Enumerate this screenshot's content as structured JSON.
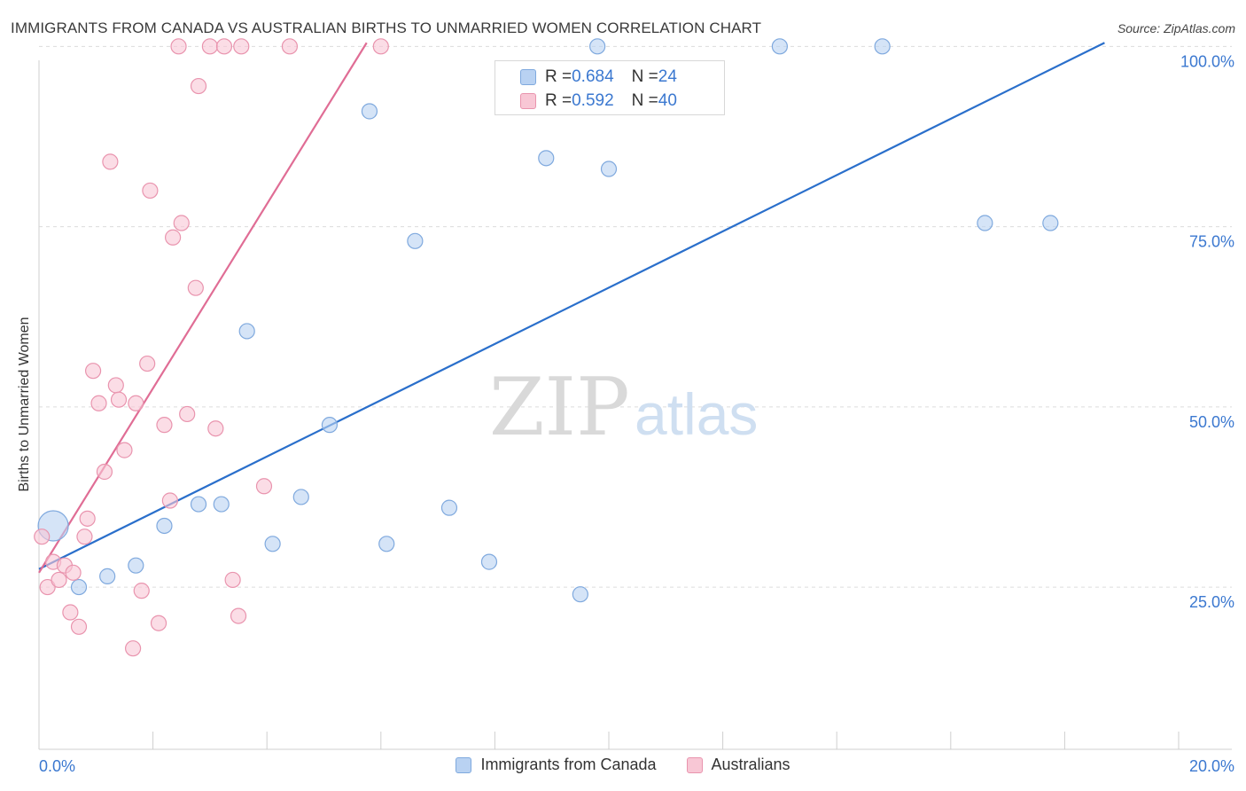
{
  "header": {
    "title": "IMMIGRANTS FROM CANADA VS AUSTRALIAN BIRTHS TO UNMARRIED WOMEN CORRELATION CHART",
    "source": "Source: ZipAtlas.com"
  },
  "watermark": {
    "zip": "ZIP",
    "atlas": "atlas"
  },
  "legend": {
    "rows": [
      {
        "r_label": "R = ",
        "r_value": "0.684",
        "n_label": "N = ",
        "n_value": "24"
      },
      {
        "r_label": "R = ",
        "r_value": "0.592",
        "n_label": "N = ",
        "n_value": "40"
      }
    ]
  },
  "colors": {
    "blue_fill": "#b9d2f2",
    "blue_stroke": "#7fa9de",
    "blue_line": "#2a6fcb",
    "pink_fill": "#f8c7d5",
    "pink_stroke": "#e994ae",
    "pink_line": "#e06d95",
    "grid": "#dcdcdc",
    "tick_text": "#3b78d0"
  },
  "chart_data": {
    "type": "scatter",
    "title": "IMMIGRANTS FROM CANADA VS AUSTRALIAN BIRTHS TO UNMARRIED WOMEN CORRELATION CHART",
    "xlabel": "",
    "ylabel": "Births to Unmarried Women",
    "xlim": [
      0,
      20
    ],
    "ylim": [
      2.5,
      102.5
    ],
    "x_tick_labels": [
      {
        "value": 0,
        "label": "0.0%"
      },
      {
        "value": 20,
        "label": "20.0%"
      }
    ],
    "y_tick_labels": [
      {
        "value": 25,
        "label": "25.0%"
      },
      {
        "value": 50,
        "label": "50.0%"
      },
      {
        "value": 75,
        "label": "75.0%"
      },
      {
        "value": 100,
        "label": "100.0%"
      }
    ],
    "x_minor_ticks": [
      0,
      2,
      4,
      6,
      8,
      10,
      12,
      14,
      16,
      18,
      20
    ],
    "grid": true,
    "legend_position": "top-center",
    "series": [
      {
        "name": "Immigrants from Canada",
        "color": "#b9d2f2",
        "points": [
          {
            "x": 0.25,
            "y": 33.5,
            "size": "large"
          },
          {
            "x": 0.7,
            "y": 25.0
          },
          {
            "x": 1.2,
            "y": 26.5
          },
          {
            "x": 1.7,
            "y": 28.0
          },
          {
            "x": 2.2,
            "y": 33.5
          },
          {
            "x": 2.8,
            "y": 36.5
          },
          {
            "x": 3.2,
            "y": 36.5
          },
          {
            "x": 3.65,
            "y": 60.5
          },
          {
            "x": 4.1,
            "y": 31.0
          },
          {
            "x": 4.6,
            "y": 37.5
          },
          {
            "x": 5.1,
            "y": 47.5
          },
          {
            "x": 5.8,
            "y": 91.0
          },
          {
            "x": 6.1,
            "y": 31.0
          },
          {
            "x": 6.6,
            "y": 73.0
          },
          {
            "x": 7.2,
            "y": 36.0
          },
          {
            "x": 7.9,
            "y": 28.5
          },
          {
            "x": 8.9,
            "y": 84.5
          },
          {
            "x": 9.5,
            "y": 24.0
          },
          {
            "x": 9.8,
            "y": 100.0
          },
          {
            "x": 10.0,
            "y": 83.0
          },
          {
            "x": 13.0,
            "y": 100.0
          },
          {
            "x": 14.8,
            "y": 100.0
          },
          {
            "x": 16.6,
            "y": 75.5
          },
          {
            "x": 17.75,
            "y": 75.5
          }
        ],
        "trend": {
          "x1": 0,
          "y1": 27.5,
          "x2": 18.7,
          "y2": 100.5
        }
      },
      {
        "name": "Australians",
        "color": "#f8c7d5",
        "points": [
          {
            "x": 0.05,
            "y": 32.0
          },
          {
            "x": 0.15,
            "y": 25.0
          },
          {
            "x": 0.25,
            "y": 28.5
          },
          {
            "x": 0.35,
            "y": 26.0
          },
          {
            "x": 0.45,
            "y": 28.0
          },
          {
            "x": 0.55,
            "y": 21.5
          },
          {
            "x": 0.6,
            "y": 27.0
          },
          {
            "x": 0.7,
            "y": 19.5
          },
          {
            "x": 0.8,
            "y": 32.0
          },
          {
            "x": 0.85,
            "y": 34.5
          },
          {
            "x": 0.95,
            "y": 55.0
          },
          {
            "x": 1.05,
            "y": 50.5
          },
          {
            "x": 1.15,
            "y": 41.0
          },
          {
            "x": 1.25,
            "y": 84.0
          },
          {
            "x": 1.35,
            "y": 53.0
          },
          {
            "x": 1.4,
            "y": 51.0
          },
          {
            "x": 1.5,
            "y": 44.0
          },
          {
            "x": 1.65,
            "y": 16.5
          },
          {
            "x": 1.7,
            "y": 50.5
          },
          {
            "x": 1.8,
            "y": 24.5
          },
          {
            "x": 1.9,
            "y": 56.0
          },
          {
            "x": 1.95,
            "y": 80.0
          },
          {
            "x": 2.1,
            "y": 20.0
          },
          {
            "x": 2.2,
            "y": 47.5
          },
          {
            "x": 2.3,
            "y": 37.0
          },
          {
            "x": 2.35,
            "y": 73.5
          },
          {
            "x": 2.45,
            "y": 100.0
          },
          {
            "x": 2.5,
            "y": 75.5
          },
          {
            "x": 2.6,
            "y": 49.0
          },
          {
            "x": 2.75,
            "y": 66.5
          },
          {
            "x": 2.8,
            "y": 94.5
          },
          {
            "x": 3.0,
            "y": 100.0
          },
          {
            "x": 3.1,
            "y": 47.0
          },
          {
            "x": 3.25,
            "y": 100.0
          },
          {
            "x": 3.4,
            "y": 26.0
          },
          {
            "x": 3.5,
            "y": 21.0
          },
          {
            "x": 3.55,
            "y": 100.0
          },
          {
            "x": 3.95,
            "y": 39.0
          },
          {
            "x": 4.4,
            "y": 100.0
          },
          {
            "x": 6.0,
            "y": 100.0
          }
        ],
        "trend": {
          "x1": 0,
          "y1": 27.0,
          "x2": 5.75,
          "y2": 100.5
        }
      }
    ]
  }
}
